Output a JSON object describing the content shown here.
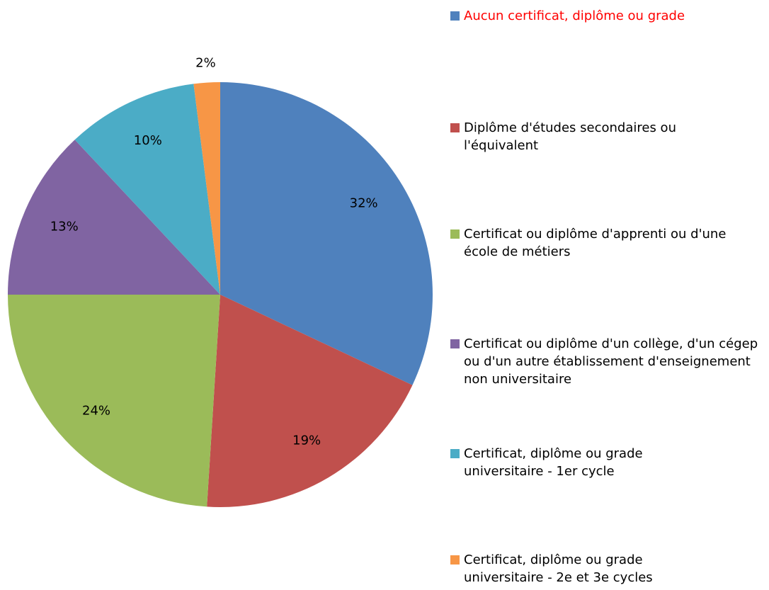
{
  "chart_data": {
    "type": "pie",
    "categories": [
      "Aucun certificat, diplôme ou grade",
      "Diplôme d'études secondaires ou l'équivalent",
      "Certificat ou diplôme d'apprenti ou d'une école de métiers",
      "Certificat ou diplôme d'un collège, d'un cégep ou d'un autre établissement d'enseignement non universitaire",
      "Certificat, diplôme ou grade universitaire - 1er cycle",
      "Certificat, diplôme ou grade universitaire - 2e et 3e cycles"
    ],
    "values": [
      32,
      19,
      24,
      13,
      10,
      2
    ],
    "value_labels": [
      "32%",
      "19%",
      "24%",
      "13%",
      "10%",
      "2%"
    ],
    "colors": [
      "#4f81bd",
      "#c0504d",
      "#9bbb59",
      "#8064a2",
      "#4bacc6",
      "#f79646"
    ],
    "legend": "right"
  }
}
